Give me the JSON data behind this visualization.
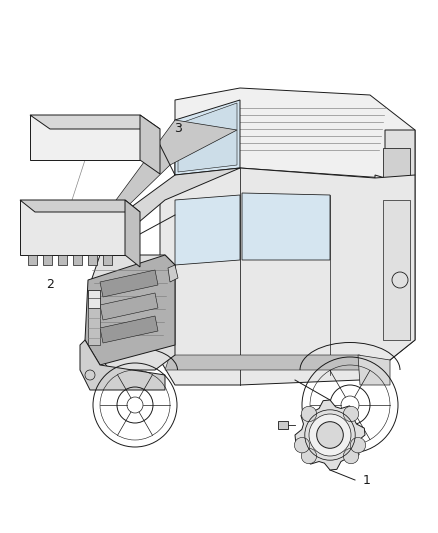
{
  "background_color": "#ffffff",
  "fig_width": 4.38,
  "fig_height": 5.33,
  "dpi": 100,
  "line_color": "#1a1a1a",
  "gray_fill": "#d8d8d8",
  "light_gray": "#ebebeb",
  "mid_gray": "#b0b0b0",
  "dark_gray": "#555555",
  "label_1": "1",
  "label_2": "2",
  "label_3": "3"
}
